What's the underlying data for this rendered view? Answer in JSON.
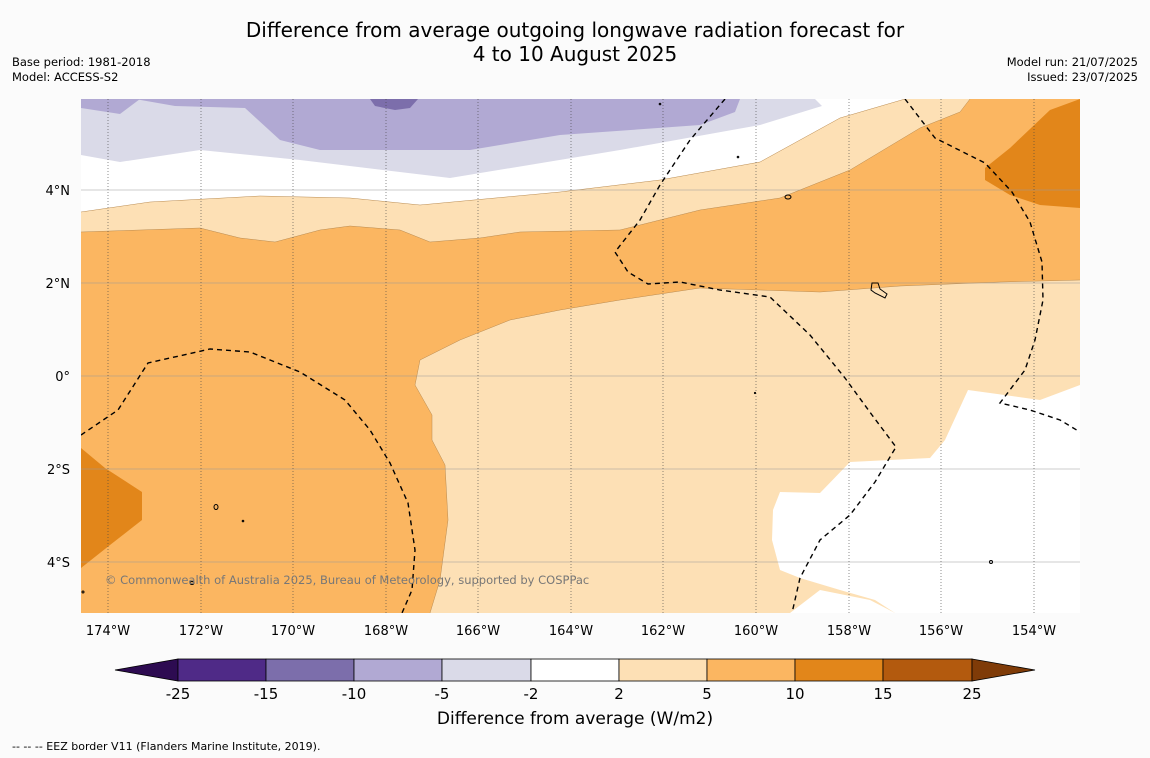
{
  "title_line1": "Difference from average outgoing longwave radiation forecast for",
  "title_line2": "4 to 10 August 2025",
  "base_period": "Base period: 1981-2018",
  "model": "Model: ACCESS-S2",
  "model_run": "Model run: 21/07/2025",
  "issued": "Issued: 23/07/2025",
  "copyright": "© Commonwealth of Australia 2025, Bureau of Meteorology, supported by COSPPac",
  "lat_labels": [
    "4°N",
    "2°N",
    "0°",
    "2°S",
    "4°S"
  ],
  "lon_labels": [
    "174°W",
    "172°W",
    "170°W",
    "168°W",
    "166°W",
    "164°W",
    "162°W",
    "160°W",
    "158°W",
    "156°W",
    "154°W"
  ],
  "colorbar": {
    "ticks": [
      "-25",
      "-15",
      "-10",
      "-5",
      "-2",
      "2",
      "5",
      "10",
      "15",
      "25"
    ],
    "colors": [
      "#4f2a87",
      "#7c6eab",
      "#b1a9d3",
      "#dadae8",
      "#ffffff",
      "#fde0b5",
      "#fbb661",
      "#e2861a",
      "#b35a0e"
    ],
    "extend_low": "#2d0b51",
    "extend_high": "#7f3b08",
    "label": "Difference from average (W/m2)"
  },
  "footnote": "-- -- -- EEZ border V11 (Flanders Marine Institute, 2019)."
}
